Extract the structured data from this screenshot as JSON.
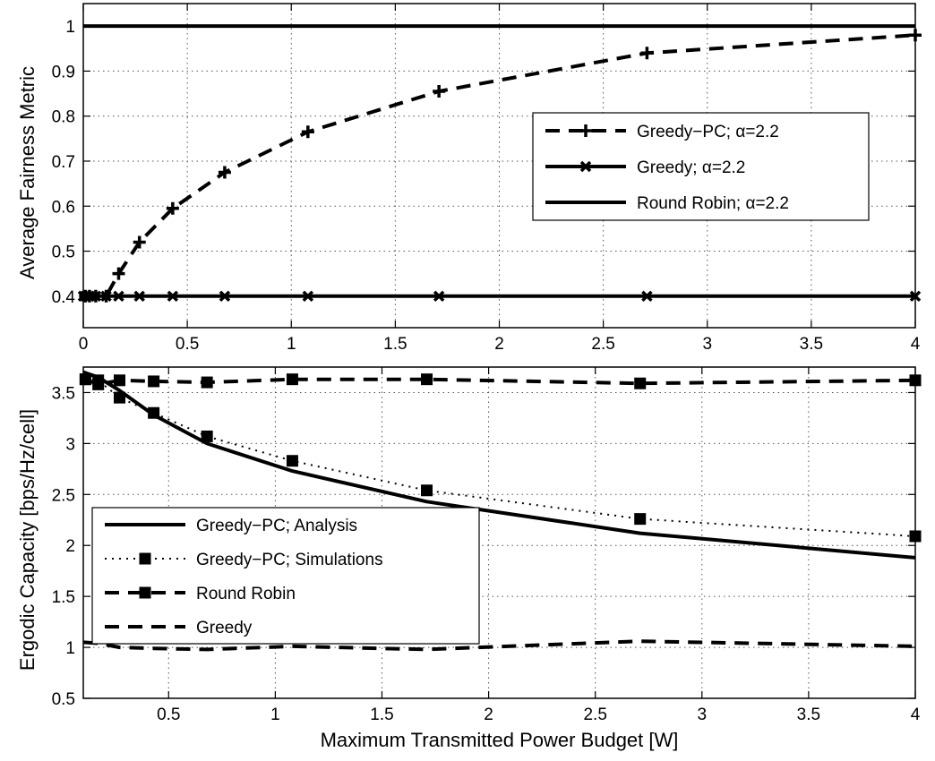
{
  "chart_data": [
    {
      "type": "line",
      "ylabel": "Average Fairness Metric",
      "xlabel": "",
      "xlim": [
        0,
        4
      ],
      "ylim": [
        0.33,
        1.05
      ],
      "xticks": [
        0,
        0.5,
        1,
        1.5,
        2,
        2.5,
        3,
        3.5,
        4
      ],
      "xtick_labels": [
        "0",
        "0.5",
        "1",
        "1.5",
        "2",
        "2.5",
        "3",
        "3.5",
        "4"
      ],
      "yticks": [
        0.4,
        0.5,
        0.6,
        0.7,
        0.8,
        0.9,
        1
      ],
      "ytick_labels": [
        "0.4",
        "0.5",
        "0.6",
        "0.7",
        "0.8",
        "0.9",
        "1"
      ],
      "grid": true,
      "legend_position": "right",
      "series": [
        {
          "name": "Greedy−PC; α=2.2",
          "line": "dashed",
          "marker": "plus",
          "x": [
            0.01,
            0.03,
            0.06,
            0.11,
            0.17,
            0.27,
            0.43,
            0.68,
            1.08,
            1.71,
            2.71,
            4.0
          ],
          "y": [
            0.4,
            0.4,
            0.4,
            0.4,
            0.45,
            0.52,
            0.595,
            0.675,
            0.765,
            0.855,
            0.94,
            0.98
          ]
        },
        {
          "name": "Greedy;  α=2.2",
          "line": "solid",
          "marker": "x",
          "x": [
            0.0,
            0.01,
            0.03,
            0.06,
            0.11,
            0.17,
            0.27,
            0.43,
            0.68,
            1.08,
            1.71,
            2.71,
            4.0
          ],
          "y": [
            0.4,
            0.4,
            0.4,
            0.4,
            0.4,
            0.4,
            0.4,
            0.4,
            0.4,
            0.4,
            0.4,
            0.4,
            0.4
          ]
        },
        {
          "name": "Round Robin; α=2.2",
          "line": "solid",
          "marker": "none",
          "x": [
            0.0,
            4.0
          ],
          "y": [
            1.0,
            1.0
          ]
        }
      ]
    },
    {
      "type": "line",
      "ylabel": "Ergodic Capacity [bps/Hz/cell]",
      "xlabel": "Maximum Transmitted Power Budget [W]",
      "xlim": [
        0.1,
        4
      ],
      "ylim": [
        0.5,
        3.75
      ],
      "xticks": [
        0.5,
        1,
        1.5,
        2,
        2.5,
        3,
        3.5,
        4
      ],
      "xtick_labels": [
        "0.5",
        "1",
        "1.5",
        "2",
        "2.5",
        "3",
        "3.5",
        "4"
      ],
      "yticks": [
        0.5,
        1,
        1.5,
        2,
        2.5,
        3,
        3.5
      ],
      "ytick_labels": [
        "0.5",
        "1",
        "1.5",
        "2",
        "2.5",
        "3",
        "3.5"
      ],
      "grid": true,
      "legend_position": "bottom-left",
      "series": [
        {
          "name": "Greedy−PC; Analysis",
          "line": "solid",
          "marker": "none",
          "x": [
            0.1,
            0.17,
            0.27,
            0.43,
            0.68,
            1.08,
            1.71,
            2.71,
            4.0
          ],
          "y": [
            3.7,
            3.65,
            3.52,
            3.28,
            3.0,
            2.73,
            2.43,
            2.12,
            1.88
          ]
        },
        {
          "name": "Greedy−PC; Simulations",
          "line": "dotted",
          "marker": "square",
          "x": [
            0.11,
            0.17,
            0.27,
            0.43,
            0.68,
            1.08,
            1.71,
            2.71,
            4.0
          ],
          "y": [
            3.63,
            3.62,
            3.45,
            3.3,
            3.07,
            2.83,
            2.54,
            2.26,
            2.09
          ]
        },
        {
          "name": "Round Robin",
          "line": "dashed",
          "marker": "square",
          "x": [
            0.11,
            0.17,
            0.27,
            0.43,
            0.68,
            1.08,
            1.71,
            2.71,
            4.0
          ],
          "y": [
            3.63,
            3.58,
            3.62,
            3.61,
            3.6,
            3.63,
            3.63,
            3.59,
            3.62
          ]
        },
        {
          "name": "Greedy",
          "line": "dashed",
          "marker": "none",
          "x": [
            0.1,
            0.17,
            0.27,
            0.43,
            0.68,
            1.08,
            1.71,
            2.71,
            4.0
          ],
          "y": [
            1.05,
            1.04,
            1.0,
            0.99,
            0.98,
            1.01,
            0.98,
            1.06,
            1.01
          ]
        }
      ]
    }
  ]
}
